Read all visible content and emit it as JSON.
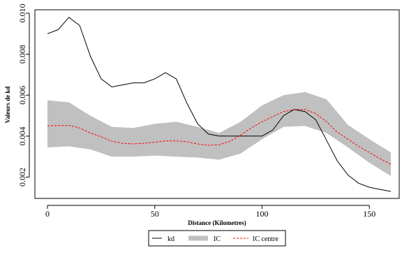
{
  "chart_data": {
    "type": "line",
    "title": "",
    "xlabel": "Distance (Kilometres)",
    "ylabel": "Valeurs de kd",
    "xlim": [
      0,
      160
    ],
    "ylim": [
      0.0013,
      0.0101
    ],
    "x_ticks": [
      0,
      50,
      100,
      150
    ],
    "x_tick_labels": [
      "0",
      "50",
      "100",
      "150"
    ],
    "y_ticks": [
      0.002,
      0.004,
      0.006,
      0.008,
      0.01
    ],
    "y_tick_labels": [
      "0.002",
      "0.004",
      "0.006",
      "0.008",
      "0.010"
    ],
    "grid": false,
    "legend_position": "bottom",
    "series": [
      {
        "name": "kd",
        "kind": "line",
        "color": "#000000",
        "x": [
          0,
          5,
          10,
          15,
          20,
          25,
          30,
          35,
          40,
          45,
          50,
          55,
          60,
          65,
          70,
          75,
          80,
          85,
          90,
          95,
          100,
          105,
          110,
          115,
          120,
          125,
          130,
          135,
          140,
          145,
          150,
          155,
          160
        ],
        "y": [
          0.009,
          0.0092,
          0.0098,
          0.0094,
          0.0079,
          0.0068,
          0.0064,
          0.0065,
          0.0066,
          0.0066,
          0.0068,
          0.0071,
          0.0068,
          0.0056,
          0.0046,
          0.0041,
          0.004,
          0.004,
          0.004,
          0.004,
          0.004,
          0.0043,
          0.005,
          0.0053,
          0.0052,
          0.0048,
          0.0038,
          0.0028,
          0.0021,
          0.0017,
          0.0015,
          0.0014,
          0.0013
        ]
      },
      {
        "name": "IC",
        "kind": "band",
        "color": "#c0c0c0",
        "x": [
          0,
          10,
          20,
          30,
          40,
          50,
          60,
          70,
          80,
          90,
          100,
          110,
          120,
          130,
          140,
          150,
          160
        ],
        "lower": [
          0.00345,
          0.0035,
          0.00335,
          0.003,
          0.003,
          0.00305,
          0.003,
          0.00295,
          0.00285,
          0.00315,
          0.00385,
          0.00445,
          0.0045,
          0.00415,
          0.00345,
          0.0027,
          0.00205
        ],
        "upper": [
          0.00575,
          0.00565,
          0.005,
          0.00445,
          0.0044,
          0.0046,
          0.0047,
          0.00445,
          0.00415,
          0.0047,
          0.0055,
          0.006,
          0.00615,
          0.0058,
          0.00455,
          0.00385,
          0.0032
        ]
      },
      {
        "name": "IC centre",
        "kind": "dashed-line",
        "color": "#ff0000",
        "x": [
          0,
          5,
          10,
          15,
          20,
          25,
          30,
          35,
          40,
          45,
          50,
          55,
          60,
          65,
          70,
          75,
          80,
          85,
          90,
          95,
          100,
          105,
          110,
          115,
          120,
          125,
          130,
          135,
          140,
          145,
          150,
          155,
          160
        ],
        "y": [
          0.0045,
          0.00452,
          0.00452,
          0.0044,
          0.00415,
          0.00397,
          0.00375,
          0.00365,
          0.00362,
          0.00365,
          0.0037,
          0.00377,
          0.00377,
          0.00372,
          0.00362,
          0.00355,
          0.00358,
          0.00375,
          0.00405,
          0.0044,
          0.0047,
          0.00495,
          0.0052,
          0.0053,
          0.0053,
          0.0051,
          0.0047,
          0.0042,
          0.00385,
          0.0035,
          0.0032,
          0.0029,
          0.00263
        ]
      }
    ]
  }
}
